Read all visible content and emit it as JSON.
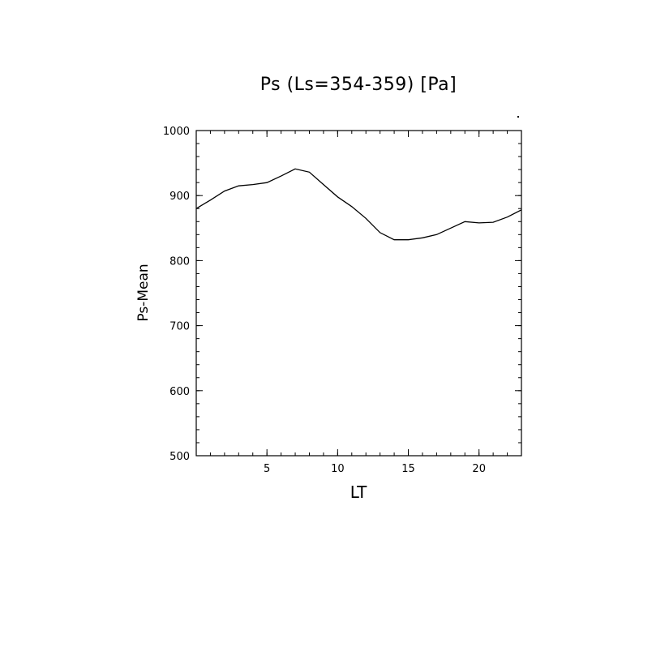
{
  "chart_data": {
    "type": "line",
    "title": "Ps (Ls=354-359) [Pa]",
    "xlabel": "LT",
    "ylabel": "Ps-Mean",
    "xlim": [
      0,
      23
    ],
    "ylim": [
      500,
      1000
    ],
    "x_ticks": [
      5,
      10,
      15,
      20
    ],
    "y_ticks": [
      500,
      600,
      700,
      800,
      900,
      1000
    ],
    "grid": false,
    "series": [
      {
        "x": [
          0,
          1,
          2,
          3,
          4,
          5,
          6,
          7,
          8,
          9,
          10,
          11,
          12,
          13,
          14,
          15,
          16,
          17,
          18,
          19,
          20,
          21,
          22,
          23
        ],
        "values": [
          880,
          893,
          907,
          915,
          917,
          920,
          930,
          941,
          936,
          917,
          898,
          883,
          865,
          843,
          832,
          832,
          835,
          840,
          850,
          860,
          858,
          859,
          867,
          878
        ]
      }
    ]
  }
}
